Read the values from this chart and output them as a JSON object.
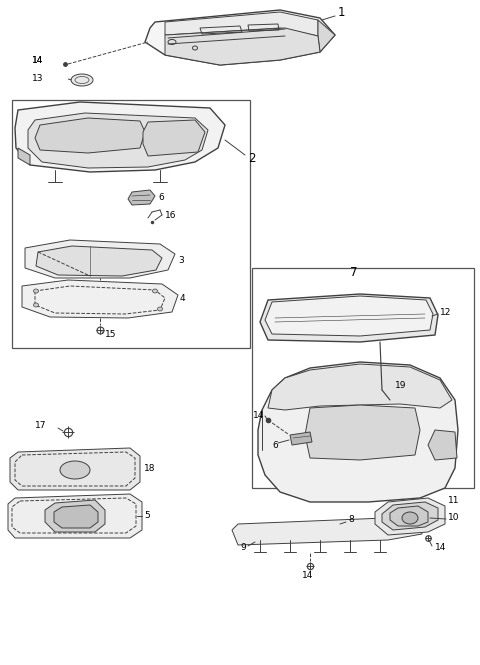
{
  "bg_color": "#ffffff",
  "lc": "#404040",
  "lc_light": "#888888",
  "lw": 0.7,
  "lw_thick": 1.0
}
